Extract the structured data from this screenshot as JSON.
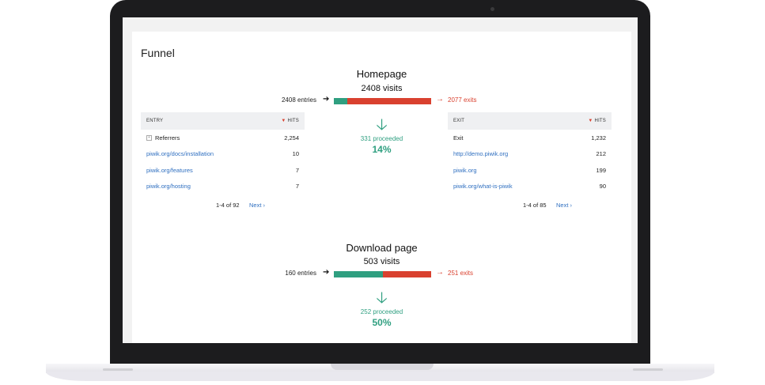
{
  "funnel": {
    "title": "Funnel",
    "steps": [
      {
        "title": "Homepage",
        "visits": "2408 visits",
        "entries": "2408 entries",
        "exits": "2077 exits",
        "proceeded": "331 proceeded",
        "percent": "14%",
        "proceeded_fraction": 0.14
      },
      {
        "title": "Download page",
        "visits": "503 visits",
        "entries": "160 entries",
        "exits": "251 exits",
        "proceeded": "252 proceeded",
        "percent": "50%",
        "proceeded_fraction": 0.5
      }
    ]
  },
  "entry_table": {
    "col_label": "ENTRY",
    "col_hits": "HITS",
    "rows": [
      {
        "label": "Referrers",
        "hits": "2,254"
      },
      {
        "label": "piwik.org/docs/installation",
        "hits": "10"
      },
      {
        "label": "piwik.org/features",
        "hits": "7"
      },
      {
        "label": "piwik.org/hosting",
        "hits": "7"
      }
    ],
    "pager": "1-4 of 92",
    "next": "Next ›"
  },
  "exit_table": {
    "col_label": "EXIT",
    "col_hits": "HITS",
    "rows": [
      {
        "label": "Exit",
        "hits": "1,232"
      },
      {
        "label": "http://demo.piwik.org",
        "hits": "212"
      },
      {
        "label": "piwik.org",
        "hits": "199"
      },
      {
        "label": "piwik.org/what-is-piwik",
        "hits": "90"
      }
    ],
    "pager": "1-4 of 85",
    "next": "Next ›"
  },
  "colors": {
    "proceeded": "#2f9f80",
    "exit": "#d9412f",
    "link": "#2f6fc0"
  },
  "icons": {
    "entry_arrow": "arrow-right-icon",
    "exit_arrow": "arrow-right-icon",
    "proceed_arrow": "arrow-down-icon",
    "expand": "plus-square-icon"
  }
}
